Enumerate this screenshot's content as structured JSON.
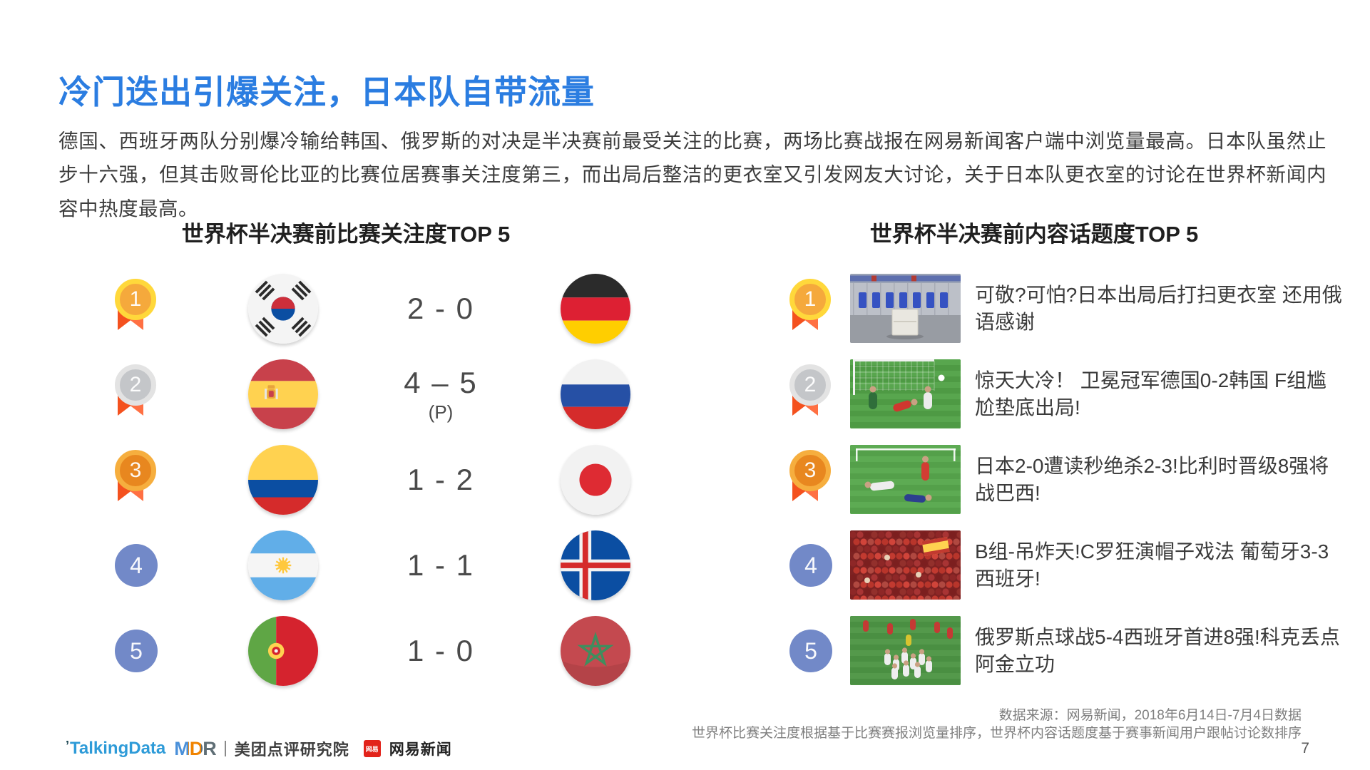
{
  "page": {
    "title": "冷门迭出引爆关注，日本队自带流量",
    "paragraph": "德国、西班牙两队分别爆冷输给韩国、俄罗斯的对决是半决赛前最受关注的比赛，两场比赛战报在网易新闻客户端中浏览量最高。日本队虽然止步十六强，但其击败哥伦比亚的比赛位居赛事关注度第三，而出局后整洁的更衣室又引发网友大讨论，关于日本队更衣室的讨论在世界杯新闻内容中热度最高。",
    "page_number": "7"
  },
  "left_panel": {
    "title": "世界杯半决赛前比赛关注度TOP 5",
    "rows": [
      {
        "rank": "1",
        "medal": "gold",
        "team1": "south-korea",
        "score": "2 - 0",
        "score_note": "",
        "team2": "germany"
      },
      {
        "rank": "2",
        "medal": "silver",
        "team1": "spain",
        "score": "4 – 5",
        "score_note": "(P)",
        "team2": "russia"
      },
      {
        "rank": "3",
        "medal": "bronze",
        "team1": "colombia",
        "score": "1 - 2",
        "score_note": "",
        "team2": "japan"
      },
      {
        "rank": "4",
        "medal": "plain",
        "team1": "argentina",
        "score": "1 - 1",
        "score_note": "",
        "team2": "iceland"
      },
      {
        "rank": "5",
        "medal": "plain",
        "team1": "portugal",
        "score": "1 - 0",
        "score_note": "",
        "team2": "morocco"
      }
    ]
  },
  "right_panel": {
    "title": "世界杯半决赛前内容话题度TOP 5",
    "rows": [
      {
        "rank": "1",
        "medal": "gold",
        "thumb": "locker-room",
        "text": "可敬?可怕?日本出局后打扫更衣室 还用俄语感谢"
      },
      {
        "rank": "2",
        "medal": "silver",
        "thumb": "germany-korea-match",
        "text": "惊天大冷！ 卫冕冠军德国0-2韩国 F组尴尬垫底出局!"
      },
      {
        "rank": "3",
        "medal": "bronze",
        "thumb": "japan-belgium-match",
        "text": "日本2-0遭读秒绝杀2-3!比利时晋级8强将战巴西!"
      },
      {
        "rank": "4",
        "medal": "plain",
        "thumb": "spain-fans",
        "text": "B组-吊炸天!C罗狂演帽子戏法 葡萄牙3-3西班牙!"
      },
      {
        "rank": "5",
        "medal": "plain",
        "thumb": "russia-celebration",
        "text": "俄罗斯点球战5-4西班牙首进8强!科克丢点阿金立功"
      }
    ]
  },
  "footer": {
    "source_line1": "数据来源：网易新闻，2018年6月14日-7月4日数据",
    "source_line2": "世界杯比赛关注度根据基于比赛赛报浏览量排序，世界杯内容话题度基于赛事新闻用户跟帖讨论数排序",
    "logos": {
      "talkingdata_tick": "’",
      "talkingdata": "TalkingData",
      "mdr": "MDR",
      "meituan": "美团点评研究院",
      "netease_badge": "网易",
      "netease": "网易新闻"
    }
  },
  "colors": {
    "title_blue": "#2B7DE1",
    "body_text": "#3C3C3C",
    "rank_plain_blue": "#7289C8",
    "medal_gold": "#FFD83B",
    "medal_silver": "#E3E3E3",
    "medal_bronze": "#F6AE3E",
    "ribbon_orange": "#FF7043",
    "source_gray": "#7F7F7F"
  }
}
